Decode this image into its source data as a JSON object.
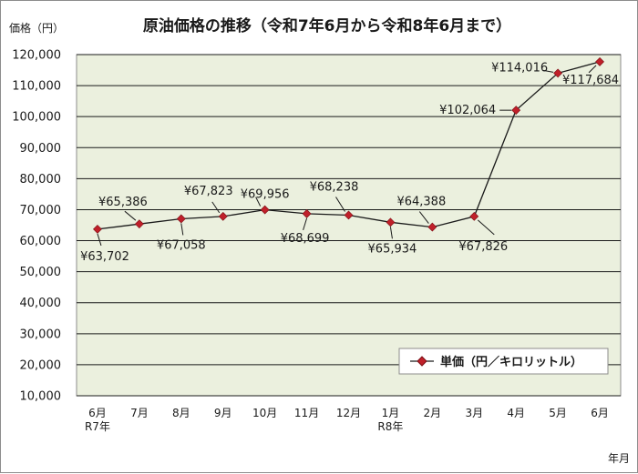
{
  "chart_data": {
    "type": "line",
    "title": "原油価格の推移（令和7年6月から令和8年6月まで）",
    "ylabel": "価格（円）",
    "xlabel": "年月",
    "ylim": [
      10000,
      120000
    ],
    "y_ticks": [
      "10,000",
      "20,000",
      "30,000",
      "40,000",
      "50,000",
      "60,000",
      "70,000",
      "80,000",
      "90,000",
      "100,000",
      "110,000",
      "120,000"
    ],
    "categories": [
      {
        "month": "6月",
        "year": "R7年"
      },
      {
        "month": "7月",
        "year": ""
      },
      {
        "month": "8月",
        "year": ""
      },
      {
        "month": "9月",
        "year": ""
      },
      {
        "month": "10月",
        "year": ""
      },
      {
        "month": "11月",
        "year": ""
      },
      {
        "month": "12月",
        "year": ""
      },
      {
        "month": "1月",
        "year": "R8年"
      },
      {
        "month": "2月",
        "year": ""
      },
      {
        "month": "3月",
        "year": ""
      },
      {
        "month": "4月",
        "year": ""
      },
      {
        "month": "5月",
        "year": ""
      },
      {
        "month": "6月",
        "year": ""
      }
    ],
    "series": [
      {
        "name": "単価（円／キロリットル）",
        "values": [
          63702,
          65386,
          67058,
          67823,
          69956,
          68699,
          68238,
          65934,
          64388,
          67826,
          102064,
          114016,
          117684
        ],
        "labels": [
          "¥63,702",
          "¥65,386",
          "¥67,058",
          "¥67,823",
          "¥69,956",
          "¥68,699",
          "¥68,238",
          "¥65,934",
          "¥64,388",
          "¥67,826",
          "¥102,064",
          "¥114,016",
          "¥117,684"
        ],
        "line_color": "#1a1a1a",
        "marker_color": "#c0202a"
      }
    ],
    "grid": true,
    "legend_position": "bottom-right",
    "plot_background": "#ebf0de",
    "gridline_color": "#1a1a1a"
  }
}
